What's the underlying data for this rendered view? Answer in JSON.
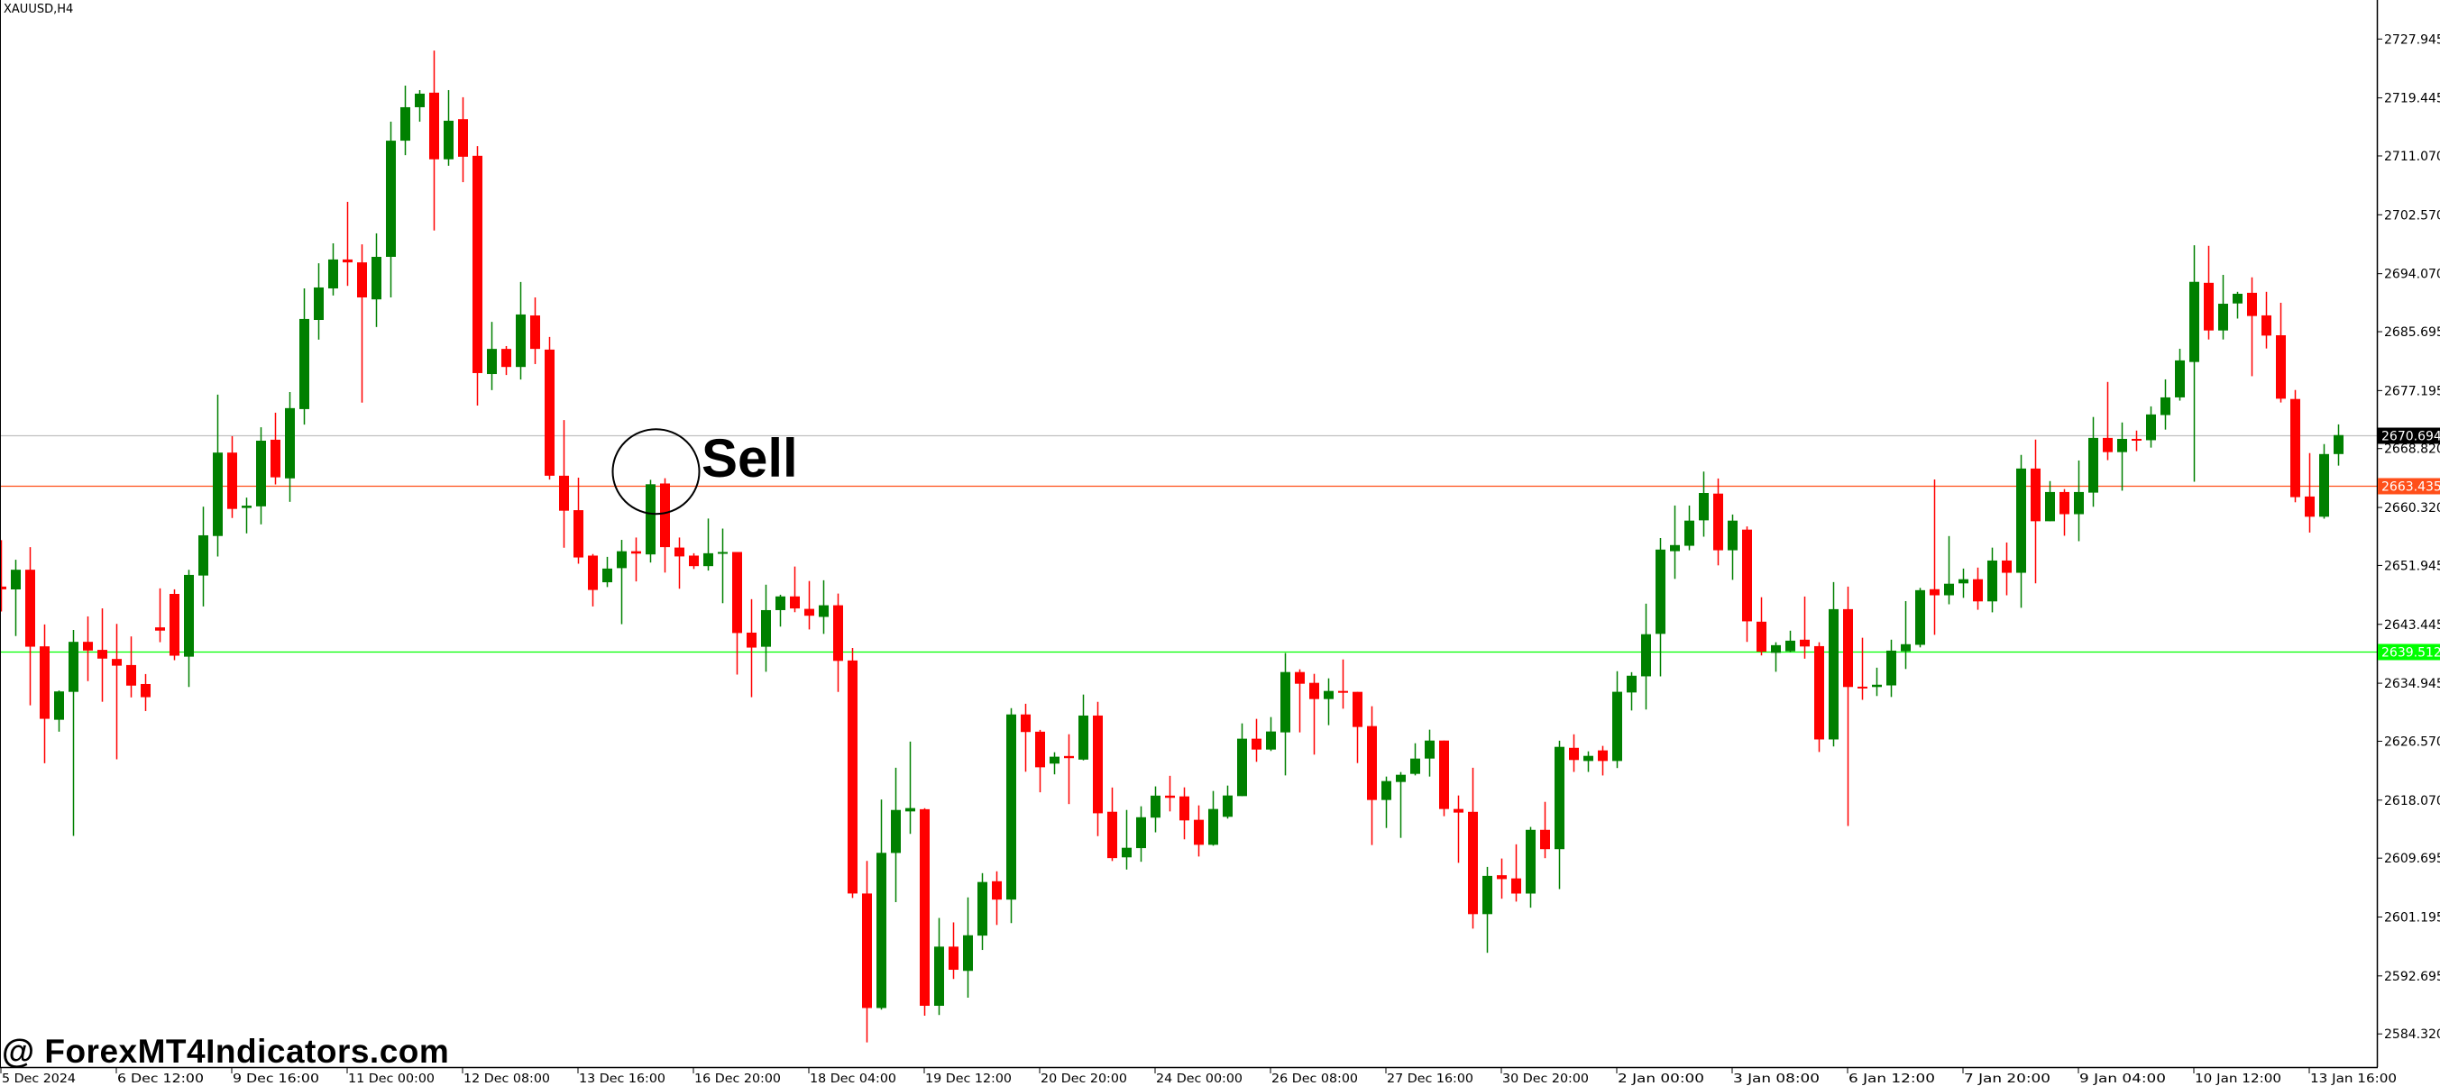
{
  "window": {
    "symbol_timeframe": "XAUUSD,H4"
  },
  "annotation": {
    "label": "Sell",
    "marker": "circle"
  },
  "watermark": "@ ForexMT4Indicators.com",
  "colors": {
    "bull": "#008000",
    "bear": "#ff0000",
    "bid_line": "#c0c0c0",
    "bid_label_bg": "#000000",
    "orange_line": "#ff4f1a",
    "green_line": "#00ff00",
    "background": "#ffffff"
  },
  "chart_data": {
    "type": "candlestick",
    "title": "XAUUSD,H4",
    "ylim": [
      2584.32,
      2727.945
    ],
    "grid": false,
    "y_ticks": [
      "2727.945",
      "2719.445",
      "2711.070",
      "2702.570",
      "2694.070",
      "2685.695",
      "2677.195",
      "2668.820",
      "2660.320",
      "2651.945",
      "2643.445",
      "2634.945",
      "2626.570",
      "2618.070",
      "2609.695",
      "2601.195",
      "2592.695",
      "2584.320"
    ],
    "x_ticks": [
      "5 Dec 2024",
      "6 Dec 12:00",
      "9 Dec 16:00",
      "11 Dec 00:00",
      "12 Dec 08:00",
      "13 Dec 16:00",
      "16 Dec 20:00",
      "18 Dec 04:00",
      "19 Dec 12:00",
      "20 Dec 20:00",
      "24 Dec 00:00",
      "26 Dec 08:00",
      "27 Dec 16:00",
      "30 Dec 20:00",
      "2 Jan 00:00",
      "3 Jan 08:00",
      "6 Jan 12:00",
      "7 Jan 20:00",
      "9 Jan 04:00",
      "10 Jan 12:00",
      "13 Jan 16:00"
    ],
    "price_lines": [
      {
        "value": "2670.694",
        "kind": "bid",
        "color": "#c0c0c0",
        "label_bg": "#000000",
        "label_fg": "#ffffff"
      },
      {
        "value": "2663.435",
        "kind": "level",
        "color": "#ff4f1a",
        "label_bg": "#ff4f1a",
        "label_fg": "#ffffff"
      },
      {
        "value": "2639.512",
        "kind": "level",
        "color": "#00ff00",
        "label_bg": "#00ff00",
        "label_fg": "#ffffff"
      }
    ],
    "sell_signal_bar": 45,
    "ohlc_fields": [
      "open",
      "high",
      "low",
      "close"
    ],
    "candles": [
      [
        2648.9,
        2655.6,
        2645.3,
        2648.5
      ],
      [
        2648.49,
        2652.77,
        2641.76,
        2651.33
      ],
      [
        2651.33,
        2654.58,
        2631.76,
        2640.22
      ],
      [
        2640.27,
        2643.43,
        2623.4,
        2629.81
      ],
      [
        2629.67,
        2633.9,
        2627.95,
        2633.76
      ],
      [
        2633.7,
        2642.64,
        2612.9,
        2640.92
      ],
      [
        2640.92,
        2644.59,
        2635.25,
        2639.66
      ],
      [
        2639.76,
        2645.75,
        2632.27,
        2638.5
      ],
      [
        2638.45,
        2643.52,
        2623.96,
        2637.48
      ],
      [
        2637.57,
        2641.7,
        2632.9,
        2634.6
      ],
      [
        2634.83,
        2636.27,
        2630.93,
        2632.93
      ],
      [
        2643.01,
        2648.64,
        2640.87,
        2642.54
      ],
      [
        2647.84,
        2648.5,
        2638.27,
        2638.92
      ],
      [
        2638.78,
        2651.32,
        2634.41,
        2650.58
      ],
      [
        2650.49,
        2660.43,
        2646.03,
        2656.3
      ],
      [
        2656.2,
        2676.61,
        2653.23,
        2668.24
      ],
      [
        2668.24,
        2670.61,
        2658.8,
        2660.11
      ],
      [
        2660.25,
        2661.74,
        2656.58,
        2660.58
      ],
      [
        2660.48,
        2671.9,
        2657.88,
        2669.96
      ],
      [
        2670.1,
        2674.0,
        2663.64,
        2664.67
      ],
      [
        2664.52,
        2676.98,
        2661.13,
        2674.66
      ],
      [
        2674.52,
        2691.94,
        2672.28,
        2687.53
      ],
      [
        2687.39,
        2695.57,
        2684.55,
        2692.08
      ],
      [
        2691.94,
        2698.45,
        2690.92,
        2696.12
      ],
      [
        2696.12,
        2704.44,
        2692.31,
        2695.7
      ],
      [
        2695.7,
        2698.31,
        2675.45,
        2690.64
      ],
      [
        2690.36,
        2699.89,
        2686.37,
        2696.5
      ],
      [
        2696.5,
        2716.01,
        2690.64,
        2713.27
      ],
      [
        2713.27,
        2721.22,
        2711.18,
        2718.1
      ],
      [
        2718.1,
        2720.57,
        2716.01,
        2720.06
      ],
      [
        2720.2,
        2726.28,
        2700.31,
        2710.58
      ],
      [
        2710.58,
        2720.57,
        2709.65,
        2716.15
      ],
      [
        2716.38,
        2719.54,
        2707.28,
        2710.95
      ],
      [
        2711.09,
        2712.48,
        2675.03,
        2679.72
      ],
      [
        2679.58,
        2687.11,
        2677.26,
        2683.21
      ],
      [
        2683.21,
        2683.62,
        2679.44,
        2680.6
      ],
      [
        2680.6,
        2692.87,
        2678.79,
        2688.18
      ],
      [
        2688.04,
        2690.64,
        2681.02,
        2683.21
      ],
      [
        2683.11,
        2684.93,
        2664.34,
        2664.9
      ],
      [
        2664.9,
        2672.94,
        2654.5,
        2659.85
      ],
      [
        2659.93,
        2664.62,
        2652.2,
        2653.1
      ],
      [
        2653.37,
        2653.6,
        2646.03,
        2648.41
      ],
      [
        2649.52,
        2653.19,
        2648.83,
        2651.5
      ],
      [
        2651.56,
        2655.64,
        2643.47,
        2654.0
      ],
      [
        2654.0,
        2655.98,
        2649.64,
        2653.66
      ],
      [
        2653.54,
        2664.31,
        2652.37,
        2663.67
      ],
      [
        2663.78,
        2664.54,
        2650.92,
        2654.59
      ],
      [
        2654.53,
        2655.98,
        2648.59,
        2653.25
      ],
      [
        2653.37,
        2653.71,
        2651.44,
        2651.85
      ],
      [
        2651.85,
        2658.72,
        2651.21,
        2653.71
      ],
      [
        2653.66,
        2657.27,
        2646.5,
        2653.89
      ],
      [
        2653.89,
        2653.89,
        2636.19,
        2642.19
      ],
      [
        2642.25,
        2647.08,
        2632.93,
        2640.09
      ],
      [
        2640.21,
        2649.17,
        2636.6,
        2645.5
      ],
      [
        2645.5,
        2647.72,
        2643.12,
        2647.48
      ],
      [
        2647.48,
        2651.79,
        2645.2,
        2645.74
      ],
      [
        2645.68,
        2649.7,
        2642.71,
        2644.69
      ],
      [
        2644.52,
        2649.81,
        2642.07,
        2646.2
      ],
      [
        2646.2,
        2647.89,
        2633.69,
        2638.17
      ],
      [
        2638.23,
        2640.03,
        2603.95,
        2604.59
      ],
      [
        2604.59,
        2609.3,
        2583.1,
        2588.06
      ],
      [
        2588.06,
        2618.15,
        2587.82,
        2610.46
      ],
      [
        2610.44,
        2622.75,
        2603.34,
        2616.65
      ],
      [
        2616.44,
        2626.52,
        2613.2,
        2616.92
      ],
      [
        2616.76,
        2616.9,
        2586.95,
        2588.38
      ],
      [
        2588.38,
        2601.06,
        2587.05,
        2596.92
      ],
      [
        2596.92,
        2600.42,
        2592.25,
        2593.58
      ],
      [
        2593.42,
        2604.03,
        2589.55,
        2598.56
      ],
      [
        2598.51,
        2607.53,
        2596.44,
        2606.25
      ],
      [
        2606.36,
        2607.79,
        2600.05,
        2603.71
      ],
      [
        2603.71,
        2631.34,
        2600.31,
        2630.44
      ],
      [
        2630.44,
        2631.98,
        2622.17,
        2627.9
      ],
      [
        2627.95,
        2628.21,
        2619.2,
        2622.81
      ],
      [
        2623.34,
        2624.98,
        2621.79,
        2624.34
      ],
      [
        2624.44,
        2627.58,
        2617.5,
        2624.13
      ],
      [
        2623.92,
        2633.31,
        2623.81,
        2630.28
      ],
      [
        2630.28,
        2632.25,
        2612.88,
        2616.17
      ],
      [
        2616.39,
        2619.89,
        2609.28,
        2609.7
      ],
      [
        2609.81,
        2616.65,
        2608.05,
        2611.19
      ],
      [
        2611.14,
        2617.18,
        2609.17,
        2615.6
      ],
      [
        2615.54,
        2620.05,
        2613.42,
        2618.72
      ],
      [
        2618.72,
        2621.58,
        2616.44,
        2618.4
      ],
      [
        2618.61,
        2619.91,
        2612.41,
        2615.14
      ],
      [
        2615.23,
        2617.31,
        2609.93,
        2611.62
      ],
      [
        2611.62,
        2619.39,
        2611.49,
        2616.79
      ],
      [
        2615.66,
        2620.17,
        2615.4,
        2618.74
      ],
      [
        2618.65,
        2629.15,
        2618.65,
        2626.94
      ],
      [
        2626.94,
        2629.8,
        2623.6,
        2625.37
      ],
      [
        2625.37,
        2630.06,
        2625.16,
        2627.98
      ],
      [
        2627.85,
        2639.3,
        2621.64,
        2636.56
      ],
      [
        2636.56,
        2636.95,
        2627.85,
        2634.87
      ],
      [
        2635.0,
        2636.3,
        2624.64,
        2632.66
      ],
      [
        2632.66,
        2635.65,
        2628.89,
        2633.83
      ],
      [
        2633.83,
        2638.38,
        2631.27,
        2633.57
      ],
      [
        2633.7,
        2633.7,
        2623.42,
        2628.63
      ],
      [
        2628.76,
        2631.62,
        2611.58,
        2618.09
      ],
      [
        2618.09,
        2621.47,
        2614.05,
        2620.82
      ],
      [
        2620.69,
        2622.12,
        2612.62,
        2621.73
      ],
      [
        2621.86,
        2626.28,
        2621.64,
        2624.07
      ],
      [
        2624.07,
        2628.24,
        2621.47,
        2626.67
      ],
      [
        2626.67,
        2626.67,
        2615.75,
        2616.79
      ],
      [
        2616.79,
        2618.74,
        2609.02,
        2616.27
      ],
      [
        2616.38,
        2622.74,
        2599.52,
        2601.61
      ],
      [
        2601.61,
        2608.43,
        2596.03,
        2607.13
      ],
      [
        2607.23,
        2609.64,
        2603.84,
        2606.67
      ],
      [
        2606.77,
        2611.69,
        2603.42,
        2604.58
      ],
      [
        2604.58,
        2614.2,
        2602.54,
        2613.78
      ],
      [
        2613.78,
        2617.82,
        2609.69,
        2610.99
      ],
      [
        2610.99,
        2626.64,
        2605.23,
        2625.76
      ],
      [
        2625.62,
        2627.57,
        2622.14,
        2623.86
      ],
      [
        2623.72,
        2625.11,
        2622.14,
        2624.46
      ],
      [
        2625.25,
        2625.9,
        2621.63,
        2623.72
      ],
      [
        2623.72,
        2636.68,
        2622.7,
        2633.71
      ],
      [
        2633.61,
        2636.54,
        2631.01,
        2636.03
      ],
      [
        2635.94,
        2646.43,
        2631.15,
        2642.02
      ],
      [
        2642.07,
        2655.91,
        2635.94,
        2654.24
      ],
      [
        2654.01,
        2660.6,
        2650.01,
        2654.89
      ],
      [
        2654.79,
        2660.6,
        2654.14,
        2658.42
      ],
      [
        2658.46,
        2665.5,
        2656.1,
        2662.41
      ],
      [
        2662.32,
        2664.5,
        2651.96,
        2654.14
      ],
      [
        2654.14,
        2659.3,
        2649.87,
        2658.42
      ],
      [
        2657.12,
        2657.58,
        2640.91,
        2643.88
      ],
      [
        2643.83,
        2647.36,
        2638.96,
        2639.51
      ],
      [
        2639.33,
        2640.86,
        2636.6,
        2640.44
      ],
      [
        2639.56,
        2642.53,
        2639.42,
        2641.09
      ],
      [
        2641.23,
        2647.46,
        2638.49,
        2640.25
      ],
      [
        2640.3,
        2640.86,
        2625.02,
        2626.83
      ],
      [
        2626.83,
        2649.55,
        2625.81,
        2645.64
      ],
      [
        2645.64,
        2648.9,
        2614.34,
        2634.4
      ],
      [
        2634.45,
        2641.51,
        2632.55,
        2634.36
      ],
      [
        2634.4,
        2637.19,
        2633.1,
        2634.73
      ],
      [
        2634.63,
        2641.23,
        2632.96,
        2639.65
      ],
      [
        2639.56,
        2646.8,
        2637.0,
        2640.58
      ],
      [
        2640.49,
        2648.71,
        2640.12,
        2648.38
      ],
      [
        2648.52,
        2664.36,
        2641.93,
        2647.64
      ],
      [
        2647.64,
        2656.19,
        2646.34,
        2649.31
      ],
      [
        2649.36,
        2651.5,
        2647.27,
        2649.96
      ],
      [
        2649.96,
        2651.64,
        2645.55,
        2646.76
      ],
      [
        2646.76,
        2654.52,
        2645.18,
        2652.66
      ],
      [
        2652.66,
        2655.26,
        2647.64,
        2650.89
      ],
      [
        2650.89,
        2667.9,
        2645.83,
        2665.94
      ],
      [
        2665.94,
        2670.12,
        2649.36,
        2658.33
      ],
      [
        2658.33,
        2664.13,
        2658.33,
        2662.55
      ],
      [
        2662.55,
        2662.97,
        2656.24,
        2659.35
      ],
      [
        2659.35,
        2667.1,
        2655.45,
        2662.55
      ],
      [
        2662.46,
        2673.38,
        2660.42,
        2670.36
      ],
      [
        2670.36,
        2678.44,
        2667.15,
        2668.31
      ],
      [
        2668.31,
        2672.59,
        2662.74,
        2670.22
      ],
      [
        2670.22,
        2671.42,
        2668.45,
        2670.03
      ],
      [
        2670.03,
        2674.91,
        2668.96,
        2673.75
      ],
      [
        2673.66,
        2678.81,
        2671.56,
        2676.21
      ],
      [
        2676.21,
        2683.23,
        2675.74,
        2681.55
      ],
      [
        2681.32,
        2698.18,
        2664.04,
        2692.89
      ],
      [
        2692.75,
        2698.09,
        2684.57,
        2685.87
      ],
      [
        2685.87,
        2693.9,
        2684.57,
        2689.73
      ],
      [
        2689.77,
        2691.45,
        2687.59,
        2691.17
      ],
      [
        2691.31,
        2693.54,
        2679.27,
        2687.96
      ],
      [
        2688.05,
        2691.45,
        2683.27,
        2685.13
      ],
      [
        2685.18,
        2689.87,
        2675.47,
        2676.02
      ],
      [
        2675.98,
        2677.28,
        2661.07,
        2661.81
      ],
      [
        2661.9,
        2668.17,
        2656.7,
        2658.98
      ],
      [
        2658.98,
        2669.47,
        2658.7,
        2668.03
      ],
      [
        2668.03,
        2672.31,
        2666.36,
        2670.77
      ]
    ]
  }
}
